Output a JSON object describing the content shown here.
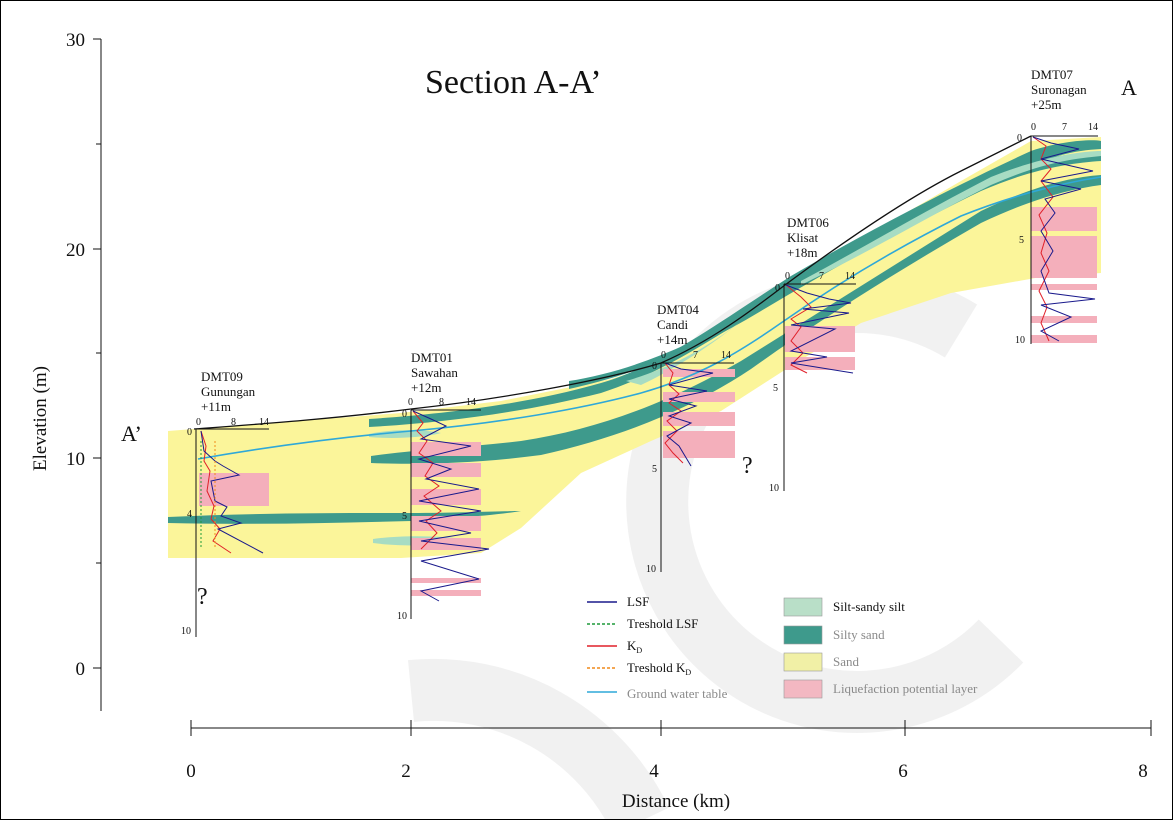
{
  "title": "Section A-A’",
  "end_labels": {
    "left": "A’",
    "right": "A"
  },
  "axes": {
    "y": {
      "label": "Elevation (m)",
      "range": [
        0,
        30
      ],
      "ticks": [
        "0",
        "10",
        "20",
        "30"
      ]
    },
    "x": {
      "label": "Distance (km)",
      "range": [
        0,
        8
      ],
      "ticks": [
        "0",
        "2",
        "4",
        "6",
        "8"
      ]
    }
  },
  "boreholes": [
    {
      "id": "DMT09",
      "name": "Gunungan",
      "elev": "+11m",
      "scale": [
        "0",
        "8",
        "14"
      ],
      "depth_labels": [
        "0",
        "4",
        "10"
      ]
    },
    {
      "id": "DMT01",
      "name": "Sawahan",
      "elev": "+12m",
      "scale": [
        "0",
        "8",
        "14"
      ],
      "depth_labels": [
        "0",
        "5",
        "10"
      ]
    },
    {
      "id": "DMT04",
      "name": "Candi",
      "elev": "+14m",
      "scale": [
        "0",
        "7",
        "14"
      ],
      "depth_labels": [
        "0",
        "5",
        "10"
      ]
    },
    {
      "id": "DMT06",
      "name": "Klisat",
      "elev": "+18m",
      "scale": [
        "0",
        "7",
        "14"
      ],
      "depth_labels": [
        "0",
        "5",
        "10"
      ]
    },
    {
      "id": "DMT07",
      "name": "Suronagan",
      "elev": "+25m",
      "scale": [
        "0",
        "7",
        "14"
      ],
      "depth_labels": [
        "0",
        "5",
        "10"
      ]
    }
  ],
  "question_marks": [
    "?",
    "?"
  ],
  "legend_lines": [
    {
      "label": "LSF",
      "color": "#1a1a8c",
      "dash": false
    },
    {
      "label": "Treshold LSF",
      "color": "#1f9a3a",
      "dash": true
    },
    {
      "label": "K",
      "sub": "D",
      "color": "#e0202a",
      "dash": false
    },
    {
      "label": "Treshold K",
      "sub": "D",
      "color": "#f08a1a",
      "dash": true
    },
    {
      "label": "Ground water table",
      "color": "#2fa8d8",
      "dash": false
    }
  ],
  "legend_fills": [
    {
      "label": "Silt-sandy silt",
      "color": "#b9dfc8"
    },
    {
      "label": "Silty sand",
      "color": "#3e9a8c"
    },
    {
      "label": "Sand",
      "color": "#f1f0a6"
    },
    {
      "label": "Liquefaction potential layer",
      "color": "#f3b8c2"
    }
  ],
  "colors": {
    "sand": "#fbf59a",
    "silty_sand": "#3e9a8c",
    "silt": "#a7dcc3",
    "liquefaction": "#f4afbb",
    "gwt": "#2fa8d8"
  }
}
